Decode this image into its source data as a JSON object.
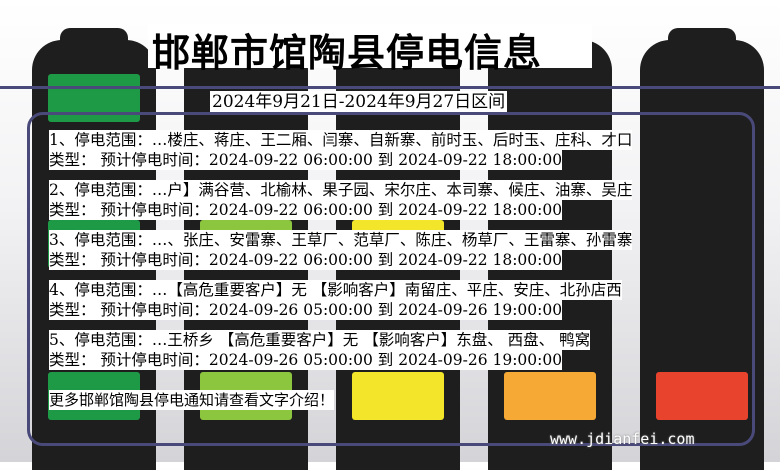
{
  "header": {
    "title": "邯郸市馆陶县停电信息",
    "date_range": "2024年9月21日-2024年9月27日区间"
  },
  "notices": [
    {
      "area": "1、停电范围：…楼庄、蒋庄、王二厢、闫寨、自新寨、前时玉、后时玉、庄科、才口",
      "time": "类型：   预计停电时间：2024-09-22 06:00:00 到 2024-09-22 18:00:00"
    },
    {
      "area": "2、停电范围：…户】满谷营、北榆林、果子园、宋尔庄、本司寨、候庄、油寨、吴庄",
      "time": "类型：   预计停电时间：2024-09-22 06:00:00 到 2024-09-22 18:00:00"
    },
    {
      "area": "3、停电范围：…、张庄、安雷寨、王草厂、范草厂、陈庄、杨草厂、王雷寨、孙雷寨",
      "time": "类型：   预计停电时间：2024-09-22 06:00:00 到 2024-09-22 18:00:00"
    },
    {
      "area": "4、停电范围：…【高危重要客户】无 【影响客户】南留庄、平庄、安庄、北孙店西",
      "time": "类型：   预计停电时间：2024-09-26 05:00:00 到 2024-09-26 19:00:00"
    },
    {
      "area": "5、停电范围：…王桥乡 【高危重要客户】无 【影响客户】东盘、 西盘、 鸭窝",
      "time": "类型：   预计停电时间：2024-09-26 05:00:00 到 2024-09-26 19:00:00"
    }
  ],
  "footer_text": "更多邯郸馆陶县停电通知请查看文字介绍！",
  "watermark": "www.jdianfei.com",
  "colors": {
    "battery_body": "#1e1e1e",
    "green": "#1e9a46",
    "light_green": "#8cc63f",
    "yellow": "#f2e52a",
    "orange": "#f7a935",
    "red": "#e8432d",
    "frame": "#4a4a7a"
  }
}
